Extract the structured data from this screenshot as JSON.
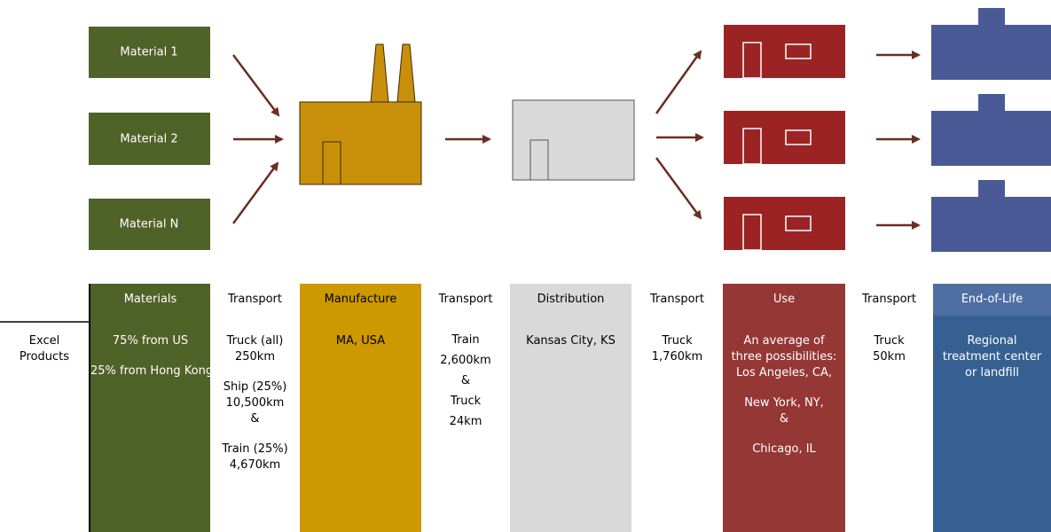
{
  "diagram": {
    "materials": [
      "Material 1",
      "Material 2",
      "Material N"
    ]
  },
  "table": {
    "row_label": "Excel Products",
    "headers": [
      "Materials",
      "Transport",
      "Manufacture",
      "Transport",
      "Distribution",
      "Transport",
      "Use",
      "Transport",
      "End-of-Life"
    ],
    "cells": [
      [
        [
          "75% from US"
        ],
        [
          "25% from Hong Kong"
        ]
      ],
      [
        [
          "Truck (all)",
          "250km"
        ],
        [
          "Ship (25%)",
          "10,500km",
          "&"
        ],
        [
          "Train (25%)",
          "4,670km"
        ]
      ],
      [
        [
          "MA, USA"
        ]
      ],
      [
        [
          "Train",
          "2,600km",
          "&",
          "Truck",
          "24km"
        ]
      ],
      [
        [
          "Kansas City, KS"
        ]
      ],
      [
        [
          "Truck",
          "1,760km"
        ]
      ],
      [
        [
          "An average of",
          "three possibilities:",
          "Los Angeles, CA,"
        ],
        [
          "New York, NY,",
          "&"
        ],
        [
          "Chicago, IL"
        ]
      ],
      [
        [
          "Truck",
          "50km"
        ]
      ],
      [
        [
          "Regional",
          "treatment center",
          "or landfill"
        ]
      ]
    ]
  }
}
